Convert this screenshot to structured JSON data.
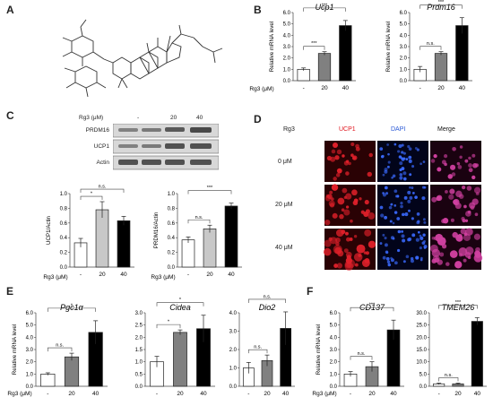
{
  "panels": {
    "A": "A",
    "B": "B",
    "C": "C",
    "D": "D",
    "E": "E",
    "F": "F"
  },
  "treatment_label": "Rg3 (μM)",
  "doses": [
    "-",
    "20",
    "40"
  ],
  "western": {
    "header": "Rg3 (μM)",
    "lanes": [
      "-",
      "20",
      "40"
    ],
    "rows": [
      "PRDM16",
      "UCP1",
      "Actin"
    ]
  },
  "microscopy": {
    "row_header": "Rg3",
    "columns": [
      "UCP1",
      "DAPI",
      "Merge"
    ],
    "column_colors": [
      "#e0141c",
      "#2a59d6",
      "#111111"
    ],
    "rows": [
      "0 μM",
      "20 μM",
      "40 μM"
    ]
  },
  "colors": {
    "control": "#ffffff",
    "dose20_gray": "#808080",
    "dose20_light": "#c8c8c8",
    "dose40": "#000000"
  },
  "chart_data": [
    {
      "id": "B1",
      "type": "bar",
      "title": "Ucp1",
      "title_italic": true,
      "ylabel": "Relative mRNA level",
      "categories": [
        "-",
        "20",
        "40"
      ],
      "values": [
        1.0,
        2.4,
        4.85
      ],
      "errors": [
        0.12,
        0.15,
        0.45
      ],
      "ylim": [
        0,
        6
      ],
      "yticks": [
        "0.0",
        "1.0",
        "2.0",
        "3.0",
        "4.0",
        "5.0",
        "6.0"
      ],
      "fills": [
        "#ffffff",
        "#808080",
        "#000000"
      ],
      "sig": [
        {
          "from": 0,
          "to": 1,
          "label": "***"
        },
        {
          "from": 0,
          "to": 2,
          "label": "***"
        }
      ]
    },
    {
      "id": "B2",
      "type": "bar",
      "title": "Prdm16",
      "title_italic": true,
      "ylabel": "Relative mRNA level",
      "categories": [
        "-",
        "20",
        "40"
      ],
      "values": [
        1.0,
        2.4,
        4.85
      ],
      "errors": [
        0.25,
        0.15,
        0.7
      ],
      "ylim": [
        0,
        6
      ],
      "yticks": [
        "0.0",
        "1.0",
        "2.0",
        "3.0",
        "4.0",
        "5.0",
        "6.0"
      ],
      "fills": [
        "#ffffff",
        "#808080",
        "#000000"
      ],
      "sig": [
        {
          "from": 0,
          "to": 1,
          "label": "n.s."
        },
        {
          "from": 0,
          "to": 2,
          "label": "***"
        }
      ]
    },
    {
      "id": "C1",
      "type": "bar",
      "title": "",
      "title_italic": false,
      "ylabel": "UCP1/Actin",
      "categories": [
        "-",
        "20",
        "40"
      ],
      "values": [
        0.33,
        0.78,
        0.63
      ],
      "errors": [
        0.06,
        0.11,
        0.06
      ],
      "ylim": [
        0,
        1.0
      ],
      "yticks": [
        "0.0",
        "0.2",
        "0.4",
        "0.6",
        "0.8",
        "1.0"
      ],
      "fills": [
        "#ffffff",
        "#c8c8c8",
        "#000000"
      ],
      "sig": [
        {
          "from": 0,
          "to": 1,
          "label": "*"
        },
        {
          "from": 0,
          "to": 2,
          "label": "n.s."
        }
      ]
    },
    {
      "id": "C2",
      "type": "bar",
      "title": "",
      "title_italic": false,
      "ylabel": "PRDM16/Actin",
      "categories": [
        "-",
        "20",
        "40"
      ],
      "values": [
        0.37,
        0.52,
        0.83
      ],
      "errors": [
        0.04,
        0.05,
        0.04
      ],
      "ylim": [
        0,
        1.0
      ],
      "yticks": [
        "0.0",
        "0.2",
        "0.4",
        "0.6",
        "0.8",
        "1.0"
      ],
      "fills": [
        "#ffffff",
        "#c8c8c8",
        "#000000"
      ],
      "sig": [
        {
          "from": 0,
          "to": 1,
          "label": "n.s."
        },
        {
          "from": 0,
          "to": 2,
          "label": "***"
        }
      ]
    },
    {
      "id": "E1",
      "type": "bar",
      "title": "Pgc1α",
      "title_italic": true,
      "ylabel": "Relative mRNA level",
      "categories": [
        "-",
        "20",
        "40"
      ],
      "values": [
        1.0,
        2.4,
        4.4
      ],
      "errors": [
        0.1,
        0.3,
        0.95
      ],
      "ylim": [
        0,
        6
      ],
      "yticks": [
        "0.0",
        "1.0",
        "2.0",
        "3.0",
        "4.0",
        "5.0",
        "6.0"
      ],
      "fills": [
        "#ffffff",
        "#808080",
        "#000000"
      ],
      "sig": [
        {
          "from": 0,
          "to": 1,
          "label": "n.s."
        },
        {
          "from": 0,
          "to": 2,
          "label": "*"
        }
      ]
    },
    {
      "id": "E2",
      "type": "bar",
      "title": "Cidea",
      "title_italic": true,
      "ylabel": "",
      "categories": [
        "-",
        "20",
        "40"
      ],
      "values": [
        1.0,
        2.2,
        2.35
      ],
      "errors": [
        0.22,
        0.1,
        0.55
      ],
      "ylim": [
        0,
        3
      ],
      "yticks": [
        "0.0",
        "0.5",
        "1.0",
        "1.5",
        "2.0",
        "2.5",
        "3.0"
      ],
      "fills": [
        "#ffffff",
        "#808080",
        "#000000"
      ],
      "sig": [
        {
          "from": 0,
          "to": 1,
          "label": "*"
        },
        {
          "from": 0,
          "to": 2,
          "label": "*"
        }
      ]
    },
    {
      "id": "E3",
      "type": "bar",
      "title": "Dio2",
      "title_italic": true,
      "ylabel": "",
      "categories": [
        "-",
        "20",
        "40"
      ],
      "values": [
        1.0,
        1.4,
        3.15
      ],
      "errors": [
        0.3,
        0.3,
        0.9
      ],
      "ylim": [
        0,
        4
      ],
      "yticks": [
        "0.0",
        "1.0",
        "2.0",
        "3.0",
        "4.0"
      ],
      "fills": [
        "#ffffff",
        "#808080",
        "#000000"
      ],
      "sig": [
        {
          "from": 0,
          "to": 1,
          "label": "n.s."
        },
        {
          "from": 0,
          "to": 2,
          "label": "n.s."
        }
      ]
    },
    {
      "id": "F1",
      "type": "bar",
      "title": "CD137",
      "title_italic": true,
      "ylabel": "Relative mRNA level",
      "categories": [
        "-",
        "20",
        "40"
      ],
      "values": [
        1.0,
        1.6,
        4.6
      ],
      "errors": [
        0.2,
        0.4,
        0.8
      ],
      "ylim": [
        0,
        6
      ],
      "yticks": [
        "0.0",
        "1.0",
        "2.0",
        "3.0",
        "4.0",
        "5.0",
        "6.0"
      ],
      "fills": [
        "#ffffff",
        "#808080",
        "#000000"
      ],
      "sig": [
        {
          "from": 0,
          "to": 1,
          "label": "n.s."
        },
        {
          "from": 0,
          "to": 2,
          "label": "***"
        }
      ]
    },
    {
      "id": "F2",
      "type": "bar",
      "title": "TMEM26",
      "title_italic": true,
      "ylabel": "",
      "categories": [
        "-",
        "20",
        "40"
      ],
      "values": [
        1.0,
        1.0,
        26.5
      ],
      "errors": [
        0.3,
        0.3,
        1.5
      ],
      "ylim": [
        0,
        30
      ],
      "yticks": [
        "0.0",
        "5.0",
        "10.0",
        "15.0",
        "20.0",
        "25.0",
        "30.0"
      ],
      "fills": [
        "#ffffff",
        "#808080",
        "#000000"
      ],
      "sig": [
        {
          "from": 0,
          "to": 1,
          "label": "n.s."
        },
        {
          "from": 0,
          "to": 2,
          "label": "***"
        }
      ]
    }
  ]
}
